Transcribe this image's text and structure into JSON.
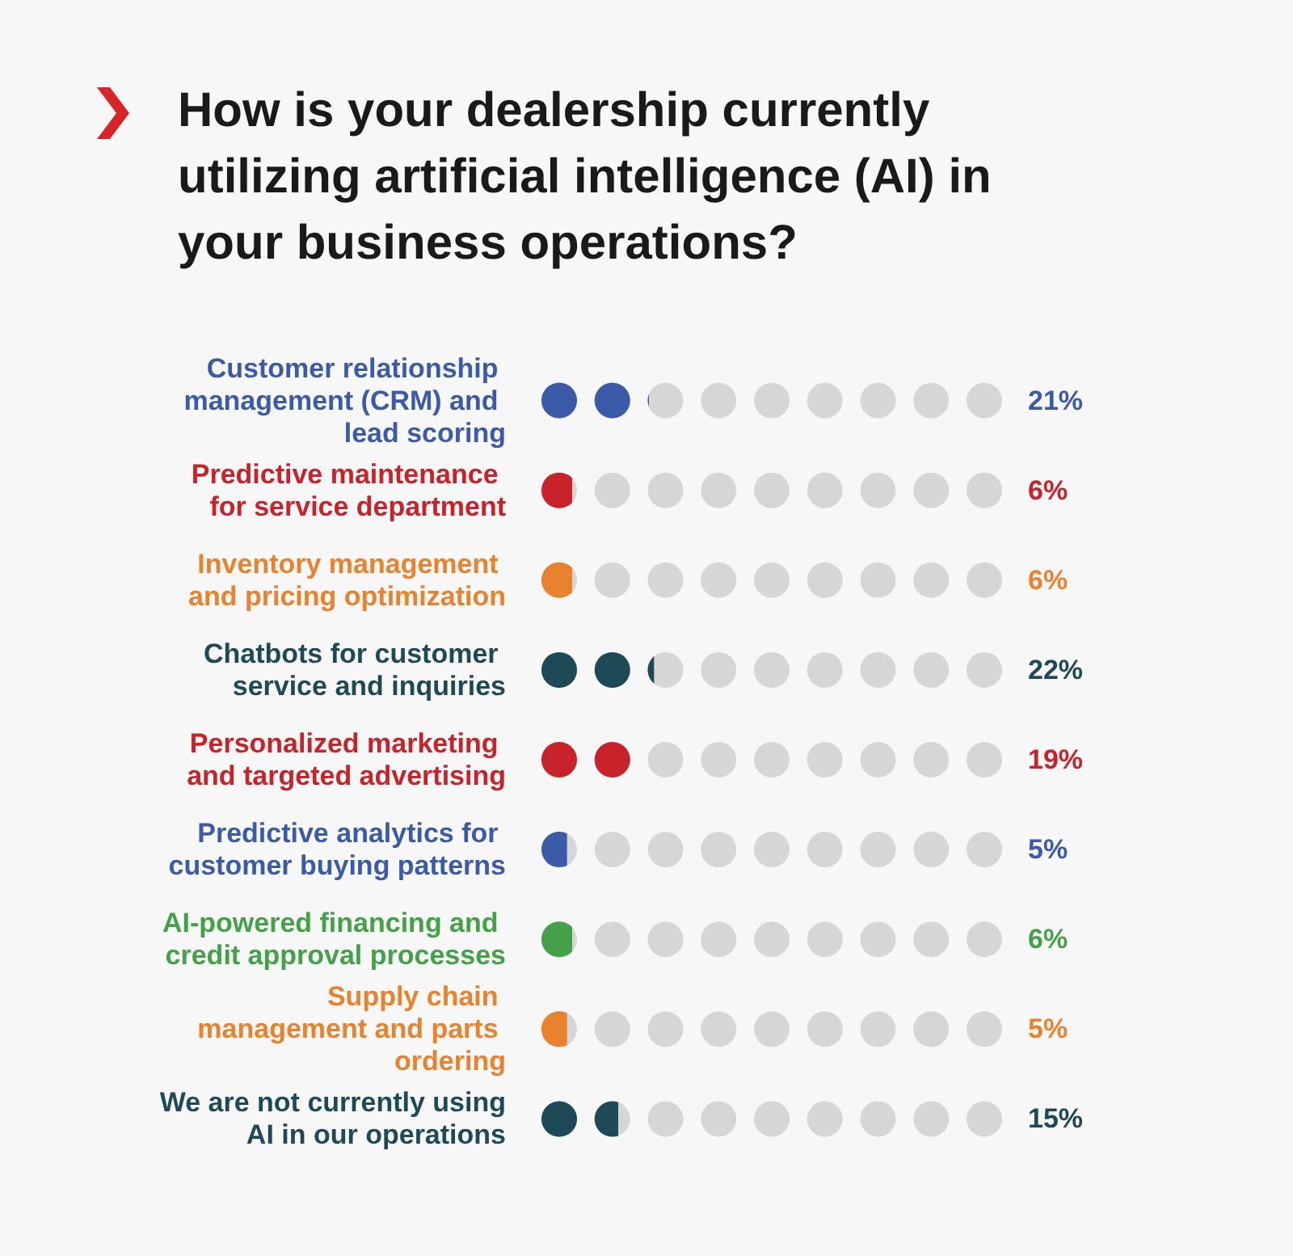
{
  "chart_data": {
    "type": "other",
    "title": "How is your dealership currently utilizing artificial intelligence (AI) in your business operations?",
    "categories": [
      "Customer relationship management (CRM) and lead scoring",
      "Predictive maintenance for service department",
      "Inventory management and pricing optimization",
      "Chatbots for customer service and inquiries",
      "Personalized marketing and targeted advertising",
      "Predictive analytics for customer buying patterns",
      "AI-powered financing and credit approval processes",
      "Supply chain management and parts ordering",
      "We are not currently using AI in our operations"
    ],
    "values": [
      21,
      6,
      6,
      22,
      19,
      5,
      6,
      5,
      15
    ],
    "value_labels": [
      "21%",
      "6%",
      "6%",
      "22%",
      "19%",
      "5%",
      "6%",
      "5%",
      "15%"
    ],
    "colors": [
      "#3b5ba9",
      "#c8232b",
      "#e8822c",
      "#1e4a58",
      "#c8232b",
      "#3b5ba9",
      "#45a04a",
      "#e8822c",
      "#1e4a58"
    ]
  }
}
